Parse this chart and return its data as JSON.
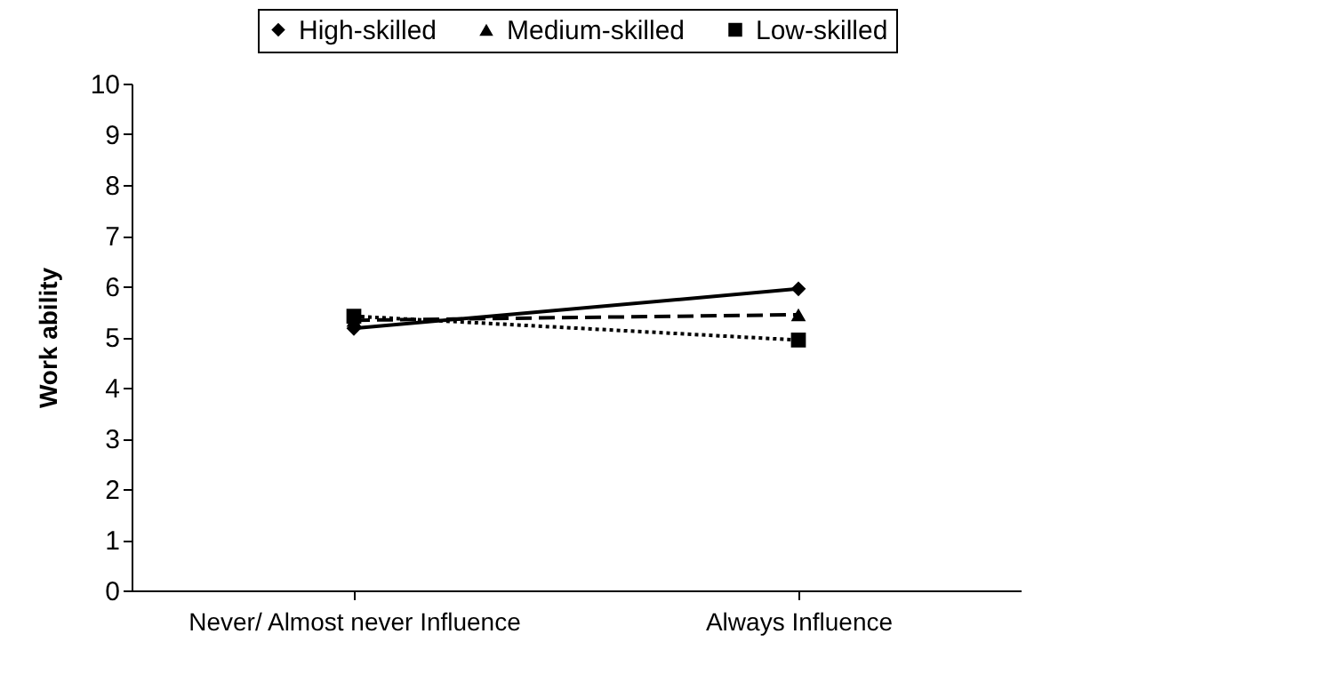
{
  "chart_data": {
    "type": "line",
    "ylabel": "Work ability",
    "categories": [
      "Never/ Almost never Influence",
      "Always Influence"
    ],
    "series": [
      {
        "name": "High-skilled",
        "color": "#000000",
        "marker": "diamond",
        "line_style": "solid",
        "values": [
          5.17,
          5.95
        ]
      },
      {
        "name": "Medium-skilled",
        "color": "#000000",
        "marker": "triangle",
        "line_style": "dashed",
        "values": [
          5.33,
          5.44
        ]
      },
      {
        "name": "Low-skilled",
        "color": "#000000",
        "marker": "square",
        "line_style": "dotted",
        "values": [
          5.41,
          4.94
        ]
      }
    ],
    "ylim": [
      0,
      10
    ],
    "yticks": [
      0,
      1,
      2,
      3,
      4,
      5,
      6,
      7,
      8,
      9,
      10
    ],
    "grid": false,
    "legend": "top"
  }
}
